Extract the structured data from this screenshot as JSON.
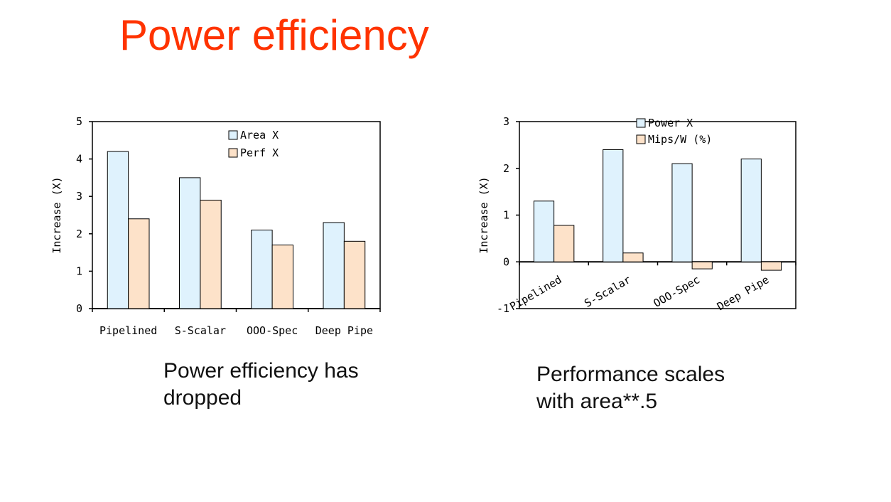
{
  "slide": {
    "title": "Power efficiency",
    "caption_left": [
      "Power efficiency has",
      "dropped"
    ],
    "caption_right": [
      "Performance scales",
      "with area**.5"
    ]
  },
  "colors": {
    "title": "#ff3300",
    "series_a": "#dff2fd",
    "series_b": "#fde2c9",
    "outline": "#000000"
  },
  "chart_data": [
    {
      "type": "bar",
      "categories": [
        "Pipelined",
        "S-Scalar",
        "OOO-Spec",
        "Deep Pipe"
      ],
      "series": [
        {
          "name": "Area X",
          "values": [
            4.2,
            3.5,
            2.1,
            2.3
          ]
        },
        {
          "name": "Perf X",
          "values": [
            2.4,
            2.9,
            1.7,
            1.8
          ]
        }
      ],
      "ylabel": "Increase (X)",
      "ylim": [
        0,
        5
      ],
      "yticks": [
        "0",
        "1",
        "2",
        "3",
        "4",
        "5"
      ],
      "legend": "top-right",
      "grid": false
    },
    {
      "type": "bar",
      "categories": [
        "Pipelined",
        "S-Scalar",
        "OOO-Spec",
        "Deep Pipe"
      ],
      "series": [
        {
          "name": "Power X",
          "values": [
            1.3,
            2.4,
            2.1,
            2.2
          ]
        },
        {
          "name": "Mips/W (%)",
          "values": [
            0.78,
            0.19,
            -0.15,
            -0.18
          ]
        }
      ],
      "ylabel": "Increase (X)",
      "ylim": [
        -1,
        3
      ],
      "yticks": [
        "-1",
        "0",
        "1",
        "2",
        "3"
      ],
      "legend": "top-right",
      "grid": false
    }
  ]
}
